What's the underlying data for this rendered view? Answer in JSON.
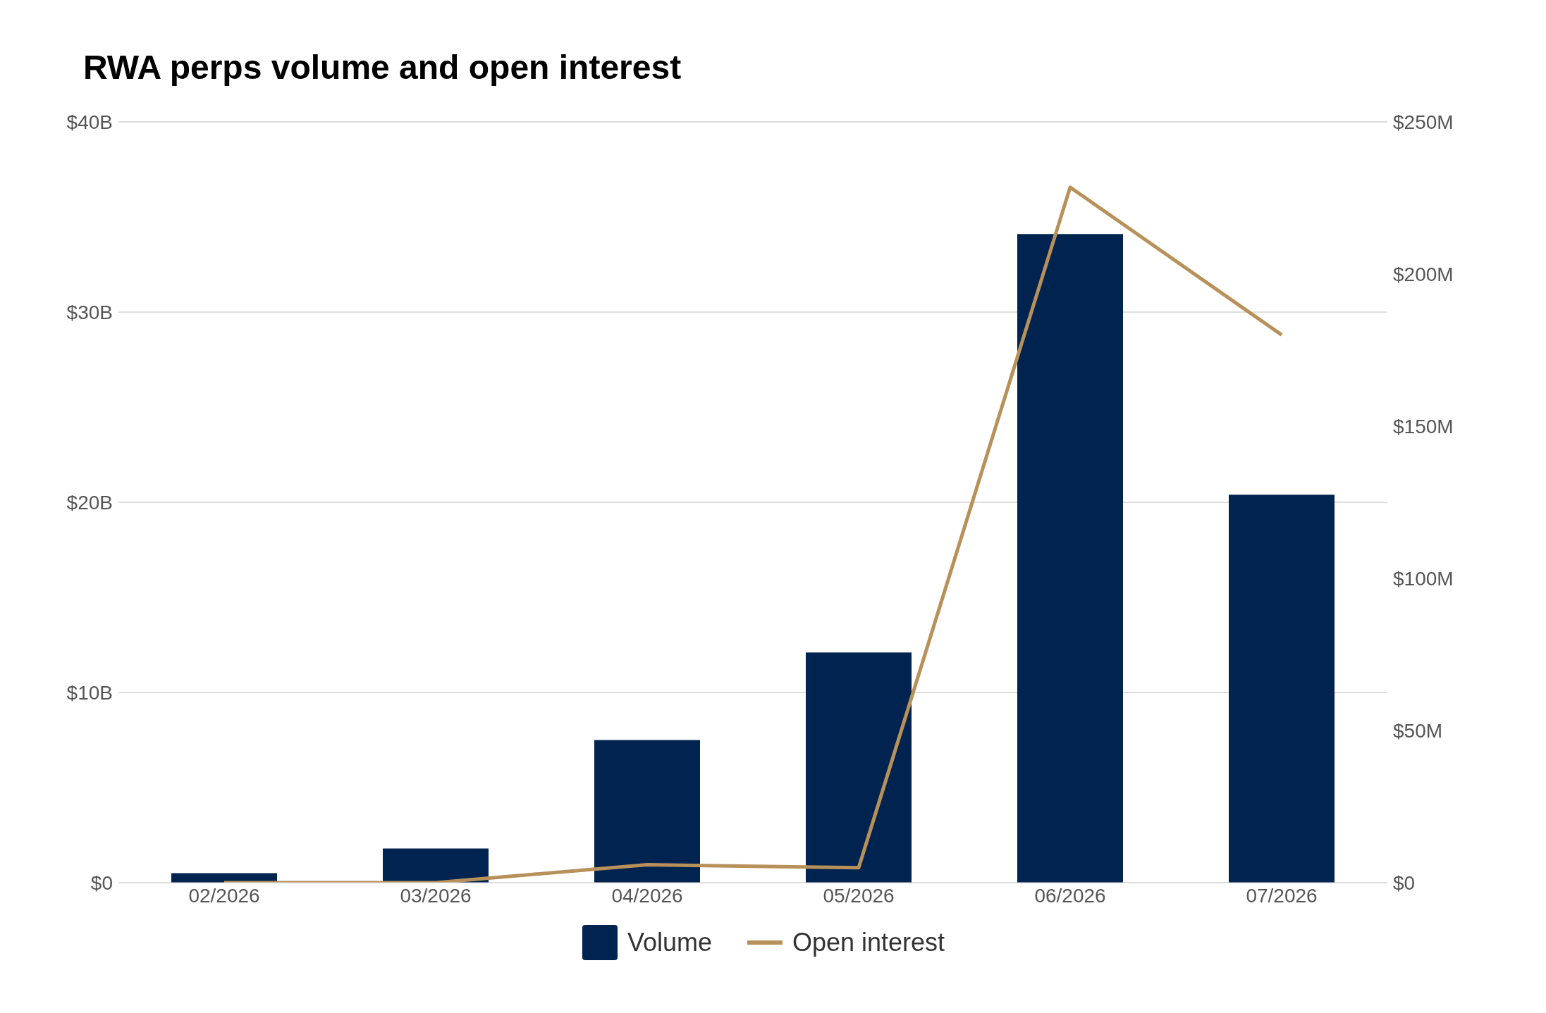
{
  "chart_data": {
    "type": "bar",
    "title": "RWA perps volume and open interest",
    "categories": [
      "02/2026",
      "03/2026",
      "04/2026",
      "05/2026",
      "06/2026",
      "07/2026"
    ],
    "series": [
      {
        "name": "Volume",
        "color": "#012350",
        "values": [
          0.5,
          1.8,
          7.5,
          12.1,
          34.1,
          20.4
        ]
      },
      {
        "name": "Open interest",
        "type": "line",
        "axis": "y2",
        "color": "#b8915a",
        "values": [
          0,
          0,
          5.9,
          4.9,
          228.5,
          180
        ]
      }
    ],
    "ylim": [
      0,
      40
    ],
    "yticks": [
      {
        "value": 0,
        "label": "$0"
      },
      {
        "value": 10,
        "label": "$10B"
      },
      {
        "value": 20,
        "label": "$20B"
      },
      {
        "value": 30,
        "label": "$30B"
      },
      {
        "value": 40,
        "label": "$40B"
      }
    ],
    "y2lim": [
      0,
      250
    ],
    "y2ticks": [
      {
        "value": 0,
        "label": "$0"
      },
      {
        "value": 50,
        "label": "$50M"
      },
      {
        "value": 100,
        "label": "$100M"
      },
      {
        "value": 150,
        "label": "$150M"
      },
      {
        "value": 200,
        "label": "$200M"
      },
      {
        "value": 250,
        "label": "$250M"
      }
    ],
    "grid": "y",
    "legend": "bottom",
    "marker": "none",
    "line_style": "solid"
  }
}
